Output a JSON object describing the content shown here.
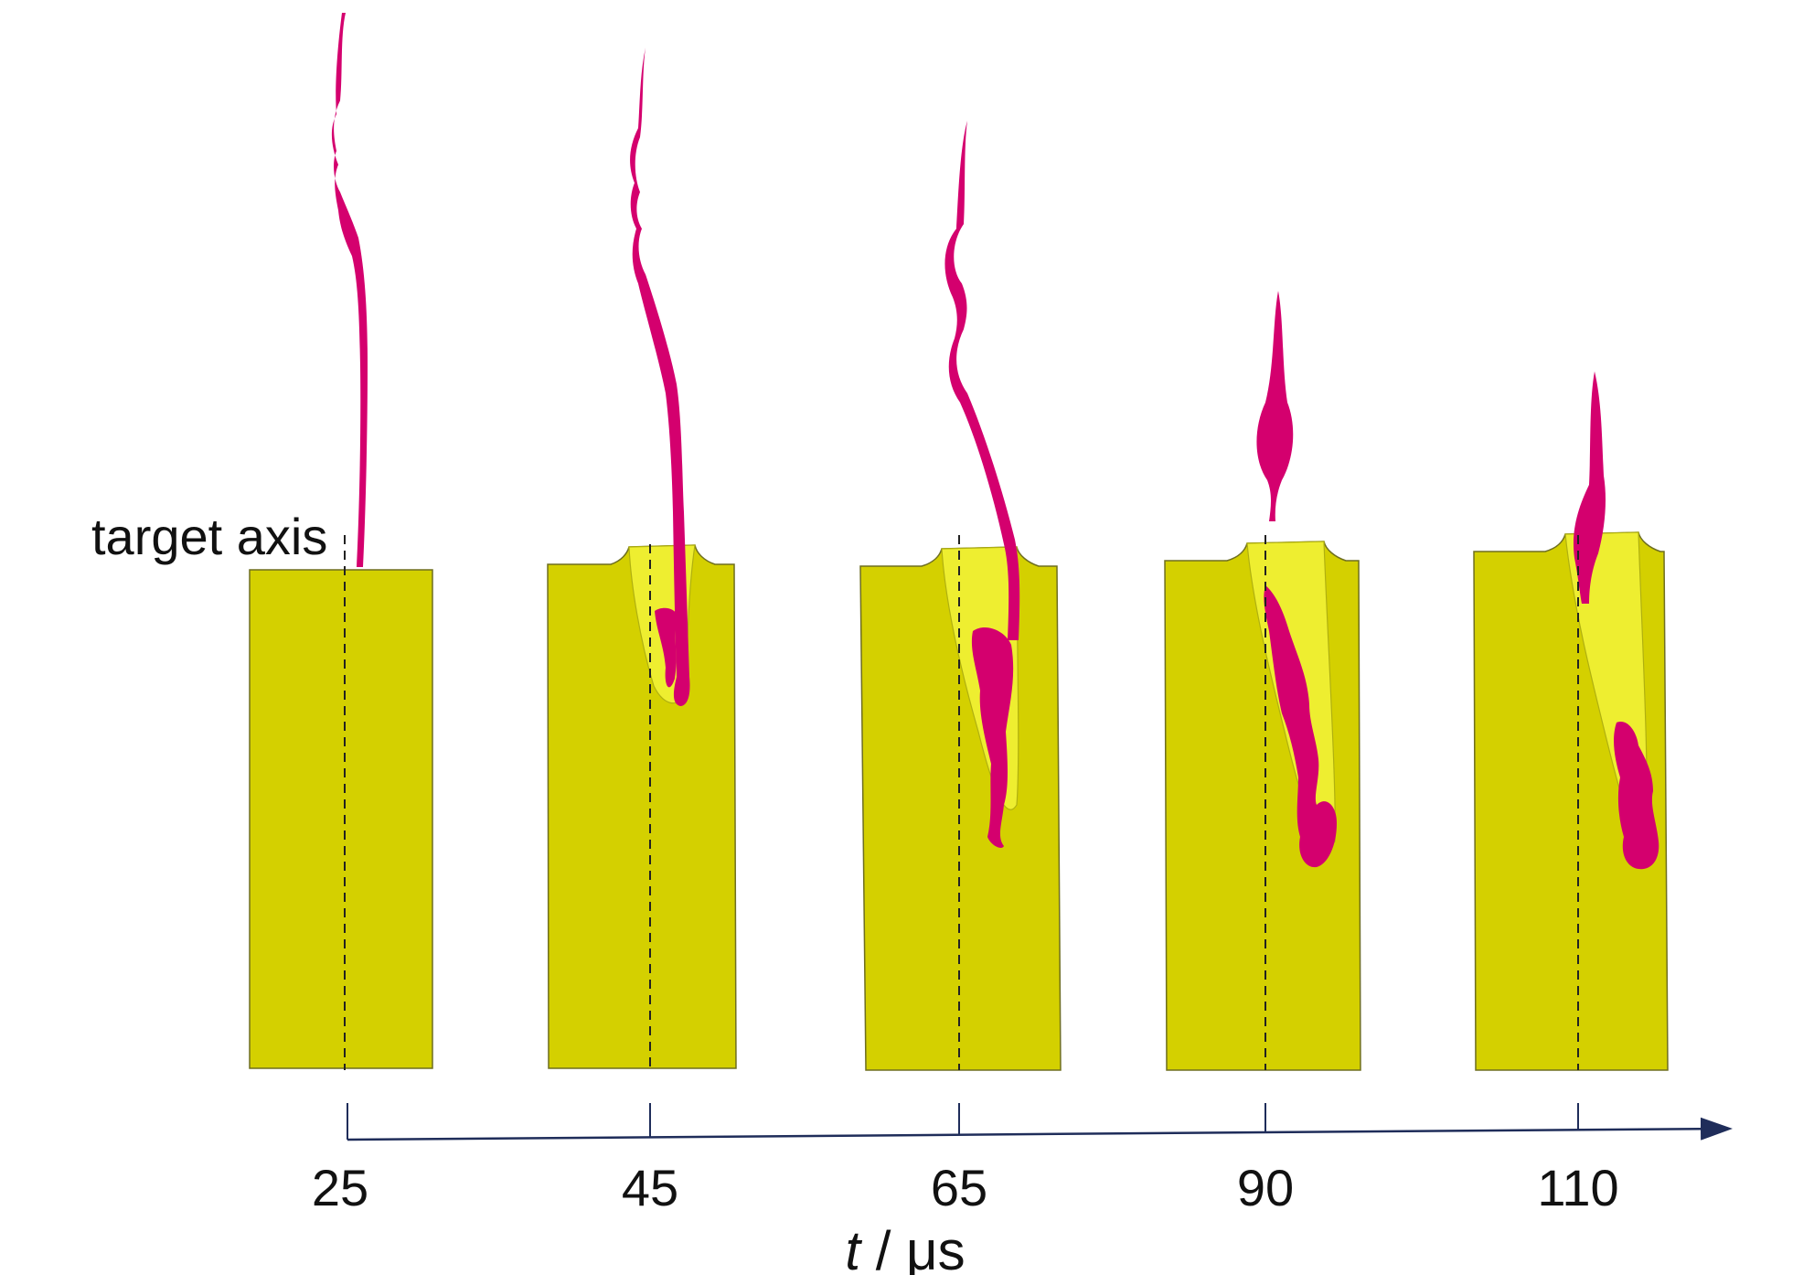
{
  "target_axis_label": "target axis",
  "time_axis": {
    "label_var": "t",
    "label_sep": " / ",
    "label_unit": "μs",
    "ticks": [
      "25",
      "45",
      "65",
      "90",
      "110"
    ]
  },
  "colors": {
    "target": "#d4d000",
    "target_edge": "#7a7a2a",
    "jet": "#d4006e",
    "axis": "#1f2d5a",
    "dashed": "#222222",
    "background": "#ffffff"
  }
}
